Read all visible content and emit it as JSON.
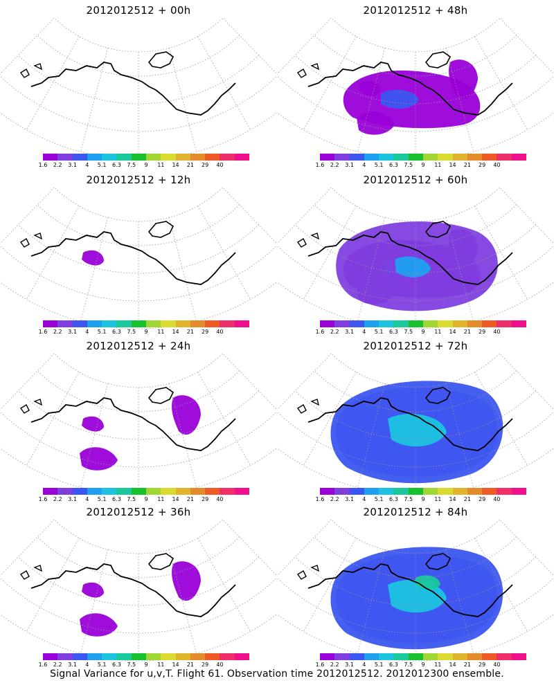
{
  "panels": [
    {
      "title": "2012012512 + 00h",
      "coverage": 0
    },
    {
      "title": "2012012512 + 48h",
      "coverage": 3
    },
    {
      "title": "2012012512 + 12h",
      "coverage": 1
    },
    {
      "title": "2012012512 + 60h",
      "coverage": 4
    },
    {
      "title": "2012012512 + 24h",
      "coverage": 2
    },
    {
      "title": "2012012512 + 72h",
      "coverage": 5
    },
    {
      "title": "2012012512 + 36h",
      "coverage": 2
    },
    {
      "title": "2012012512 + 84h",
      "coverage": 6
    }
  ],
  "colorbar": {
    "colors": [
      "#9a00d8",
      "#7f3fe0",
      "#3b57f0",
      "#1ea0f0",
      "#1cc4e0",
      "#19c99b",
      "#17c02c",
      "#9fd631",
      "#d9dc2f",
      "#e0b52d",
      "#e38a2a",
      "#ef5a25",
      "#ee2f6a",
      "#f00f8c"
    ],
    "labels": [
      "1.6",
      "2.2",
      "3.1",
      "4",
      "5.1",
      "6.3",
      "7.5",
      "9",
      "11",
      "14",
      "21",
      "29",
      "40"
    ]
  },
  "footer": "Signal Variance for u,v,T. Flight 61. Observation time 2012012512. 2012012300 ensemble."
}
